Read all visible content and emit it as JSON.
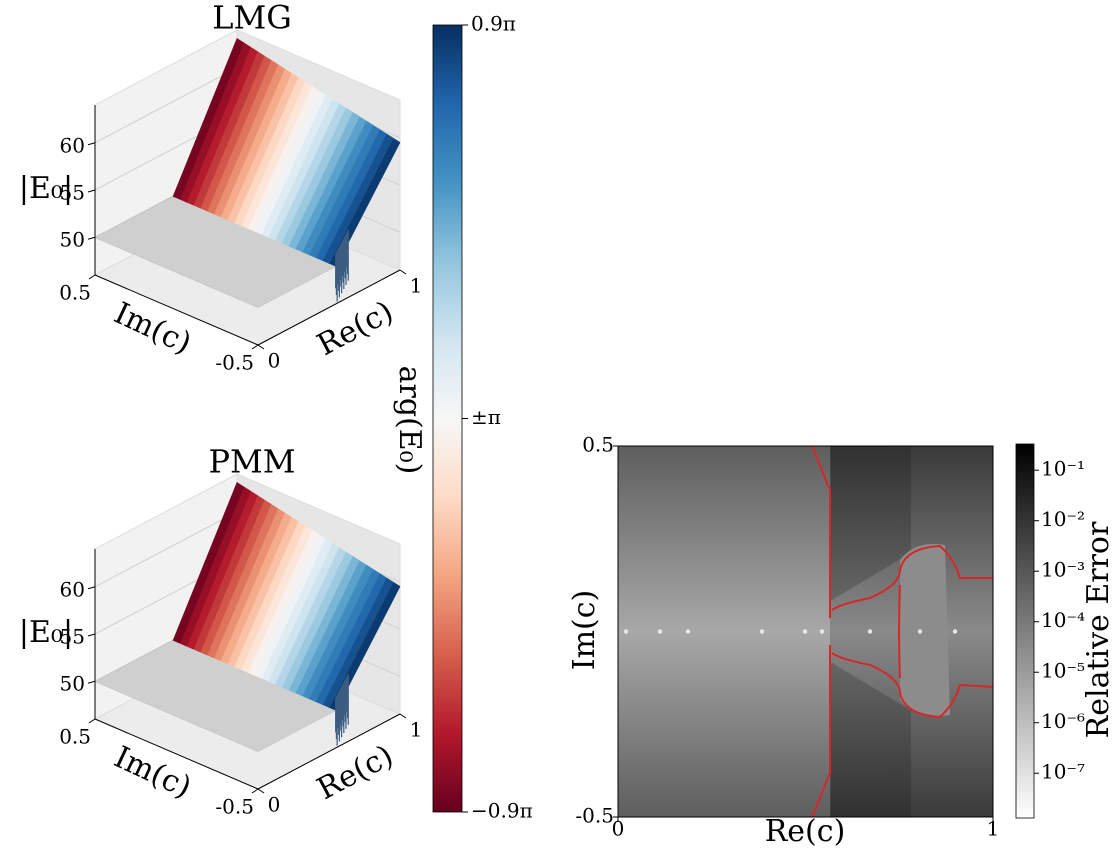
{
  "chart_data": [
    {
      "type": "surface3d",
      "title": "LMG",
      "xlabel": "Re(c)",
      "ylabel": "Im(c)",
      "zlabel": "|E₀|",
      "xlim": [
        0,
        1
      ],
      "ylim": [
        -0.5,
        0.5
      ],
      "zlim": [
        46,
        64
      ],
      "xticks": [
        0,
        1
      ],
      "yticks": [
        0.5,
        -0.5
      ],
      "zticks": [
        50,
        55,
        60
      ]
    },
    {
      "type": "surface3d",
      "title": "PMM",
      "xlabel": "Re(c)",
      "ylabel": "Im(c)",
      "zlabel": "|E₀|",
      "xlim": [
        0,
        1
      ],
      "ylim": [
        -0.5,
        0.5
      ],
      "zlim": [
        46,
        64
      ],
      "xticks": [
        0,
        1
      ],
      "yticks": [
        0.5,
        -0.5
      ],
      "zticks": [
        50,
        55,
        60
      ]
    },
    {
      "type": "colorbar",
      "label": "arg(E₀)",
      "ylim": [
        1.1,
        0.9
      ],
      "ticks": [
        {
          "value": 0.9,
          "label": "0.9π"
        },
        {
          "value": 1,
          "label": "±π"
        },
        {
          "value": 1.1,
          "label": "−0.9π"
        }
      ],
      "colors": [
        "#67001f",
        "#b2182b",
        "#d6604d",
        "#f4a582",
        "#fddbc7",
        "#f7f7f7",
        "#d1e5f0",
        "#92c5de",
        "#4393c3",
        "#2166ac",
        "#053061"
      ]
    },
    {
      "type": "heatmap",
      "xlabel": "Re(c)",
      "ylabel": "Im(c)",
      "xlim": [
        0,
        1
      ],
      "ylim": [
        -0.5,
        0.5
      ],
      "xticks": [
        0,
        1
      ],
      "yticks": [
        0.5,
        -0.5
      ],
      "contour_color": "#d62728",
      "colorbar": {
        "label": "Relative Error",
        "log": true,
        "lim": [
          1.3e-08,
          0.33
        ],
        "colors": [
          "#ffffff",
          "#000000"
        ],
        "ticks": [
          {
            "value": 1e-07,
            "label": "10⁻⁷"
          },
          {
            "value": 1e-06,
            "label": "10⁻⁶"
          },
          {
            "value": 1e-05,
            "label": "10⁻⁵"
          },
          {
            "value": 0.0001,
            "label": "10⁻⁴"
          },
          {
            "value": 0.001,
            "label": "10⁻³"
          },
          {
            "value": 0.01,
            "label": "10⁻²"
          },
          {
            "value": 0.1,
            "label": "10⁻¹"
          }
        ]
      }
    }
  ]
}
